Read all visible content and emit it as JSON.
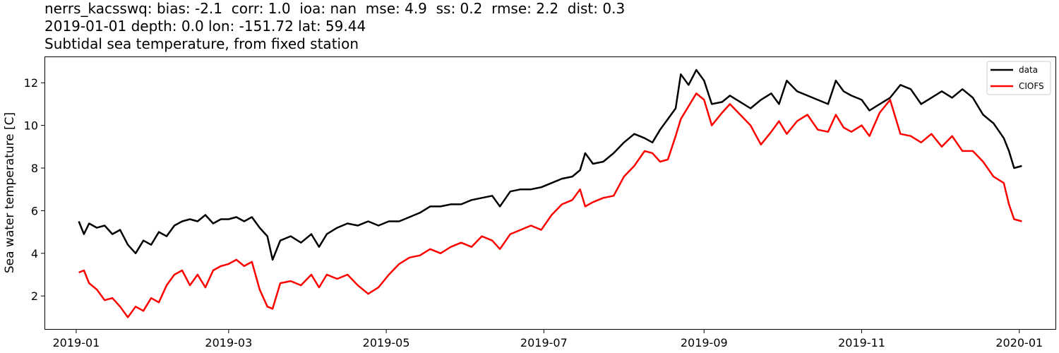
{
  "header": {
    "line1": "nerrs_kacsswq: bias: -2.1  corr: 1.0  ioa: nan  mse: 4.9  ss: 0.2  rmse: 2.2  dist: 0.3",
    "line2": "2019-01-01 depth: 0.0 lon: -151.72 lat: 59.44",
    "line3": "Subtidal sea temperature, from fixed station"
  },
  "chart_data": {
    "type": "line",
    "xlabel": "",
    "ylabel": "Sea water temperature [C]",
    "xlim": [
      "2018-12-20",
      "2020-01-15"
    ],
    "ylim": [
      0.45,
      13.2
    ],
    "x_ticks": [
      "2019-01",
      "2019-03",
      "2019-05",
      "2019-07",
      "2019-09",
      "2019-11",
      "2020-01"
    ],
    "y_ticks": [
      2,
      4,
      6,
      8,
      10,
      12
    ],
    "grid": false,
    "legend": {
      "position": "top-right"
    },
    "series": [
      {
        "name": "data",
        "color": "#000000",
        "points": [
          [
            "2019-01-02",
            5.5
          ],
          [
            "2019-01-04",
            4.9
          ],
          [
            "2019-01-06",
            5.4
          ],
          [
            "2019-01-09",
            5.2
          ],
          [
            "2019-01-12",
            5.3
          ],
          [
            "2019-01-15",
            4.9
          ],
          [
            "2019-01-18",
            5.1
          ],
          [
            "2019-01-21",
            4.4
          ],
          [
            "2019-01-24",
            4.0
          ],
          [
            "2019-01-27",
            4.6
          ],
          [
            "2019-01-30",
            4.4
          ],
          [
            "2019-02-02",
            5.0
          ],
          [
            "2019-02-05",
            4.8
          ],
          [
            "2019-02-08",
            5.3
          ],
          [
            "2019-02-11",
            5.5
          ],
          [
            "2019-02-14",
            5.6
          ],
          [
            "2019-02-17",
            5.5
          ],
          [
            "2019-02-20",
            5.8
          ],
          [
            "2019-02-23",
            5.4
          ],
          [
            "2019-02-26",
            5.6
          ],
          [
            "2019-03-01",
            5.6
          ],
          [
            "2019-03-04",
            5.7
          ],
          [
            "2019-03-07",
            5.5
          ],
          [
            "2019-03-10",
            5.7
          ],
          [
            "2019-03-13",
            5.2
          ],
          [
            "2019-03-16",
            4.8
          ],
          [
            "2019-03-18",
            3.7
          ],
          [
            "2019-03-21",
            4.6
          ],
          [
            "2019-03-25",
            4.8
          ],
          [
            "2019-03-29",
            4.5
          ],
          [
            "2019-04-02",
            4.9
          ],
          [
            "2019-04-05",
            4.3
          ],
          [
            "2019-04-08",
            4.9
          ],
          [
            "2019-04-12",
            5.2
          ],
          [
            "2019-04-16",
            5.4
          ],
          [
            "2019-04-20",
            5.3
          ],
          [
            "2019-04-24",
            5.5
          ],
          [
            "2019-04-28",
            5.3
          ],
          [
            "2019-05-02",
            5.5
          ],
          [
            "2019-05-06",
            5.5
          ],
          [
            "2019-05-10",
            5.7
          ],
          [
            "2019-05-14",
            5.9
          ],
          [
            "2019-05-18",
            6.2
          ],
          [
            "2019-05-22",
            6.2
          ],
          [
            "2019-05-26",
            6.3
          ],
          [
            "2019-05-30",
            6.3
          ],
          [
            "2019-06-03",
            6.5
          ],
          [
            "2019-06-07",
            6.6
          ],
          [
            "2019-06-11",
            6.7
          ],
          [
            "2019-06-14",
            6.2
          ],
          [
            "2019-06-18",
            6.9
          ],
          [
            "2019-06-22",
            7.0
          ],
          [
            "2019-06-26",
            7.0
          ],
          [
            "2019-06-30",
            7.1
          ],
          [
            "2019-07-04",
            7.3
          ],
          [
            "2019-07-08",
            7.5
          ],
          [
            "2019-07-12",
            7.6
          ],
          [
            "2019-07-15",
            7.9
          ],
          [
            "2019-07-17",
            8.7
          ],
          [
            "2019-07-20",
            8.2
          ],
          [
            "2019-07-24",
            8.3
          ],
          [
            "2019-07-28",
            8.7
          ],
          [
            "2019-08-01",
            9.2
          ],
          [
            "2019-08-05",
            9.6
          ],
          [
            "2019-08-09",
            9.4
          ],
          [
            "2019-08-12",
            9.2
          ],
          [
            "2019-08-15",
            9.8
          ],
          [
            "2019-08-18",
            10.3
          ],
          [
            "2019-08-21",
            10.8
          ],
          [
            "2019-08-23",
            12.4
          ],
          [
            "2019-08-26",
            11.9
          ],
          [
            "2019-08-29",
            12.6
          ],
          [
            "2019-09-01",
            12.1
          ],
          [
            "2019-09-04",
            11.0
          ],
          [
            "2019-09-08",
            11.1
          ],
          [
            "2019-09-11",
            11.4
          ],
          [
            "2019-09-15",
            11.1
          ],
          [
            "2019-09-19",
            10.8
          ],
          [
            "2019-09-23",
            11.2
          ],
          [
            "2019-09-27",
            11.5
          ],
          [
            "2019-09-30",
            11.0
          ],
          [
            "2019-10-03",
            12.1
          ],
          [
            "2019-10-07",
            11.6
          ],
          [
            "2019-10-11",
            11.4
          ],
          [
            "2019-10-15",
            11.2
          ],
          [
            "2019-10-19",
            11.0
          ],
          [
            "2019-10-22",
            12.1
          ],
          [
            "2019-10-25",
            11.6
          ],
          [
            "2019-10-28",
            11.4
          ],
          [
            "2019-11-01",
            11.2
          ],
          [
            "2019-11-04",
            10.7
          ],
          [
            "2019-11-08",
            11.0
          ],
          [
            "2019-11-12",
            11.3
          ],
          [
            "2019-11-16",
            11.9
          ],
          [
            "2019-11-20",
            11.7
          ],
          [
            "2019-11-24",
            11.0
          ],
          [
            "2019-11-28",
            11.3
          ],
          [
            "2019-12-02",
            11.6
          ],
          [
            "2019-12-06",
            11.3
          ],
          [
            "2019-12-10",
            11.7
          ],
          [
            "2019-12-14",
            11.3
          ],
          [
            "2019-12-18",
            10.5
          ],
          [
            "2019-12-22",
            10.1
          ],
          [
            "2019-12-26",
            9.4
          ],
          [
            "2019-12-28",
            8.8
          ],
          [
            "2019-12-30",
            8.0
          ],
          [
            "2020-01-02",
            8.1
          ]
        ]
      },
      {
        "name": "CIOFS",
        "color": "#ff0000",
        "points": [
          [
            "2019-01-02",
            3.1
          ],
          [
            "2019-01-04",
            3.2
          ],
          [
            "2019-01-06",
            2.6
          ],
          [
            "2019-01-09",
            2.3
          ],
          [
            "2019-01-12",
            1.8
          ],
          [
            "2019-01-15",
            1.9
          ],
          [
            "2019-01-18",
            1.5
          ],
          [
            "2019-01-21",
            1.0
          ],
          [
            "2019-01-24",
            1.5
          ],
          [
            "2019-01-27",
            1.3
          ],
          [
            "2019-01-30",
            1.9
          ],
          [
            "2019-02-02",
            1.7
          ],
          [
            "2019-02-05",
            2.5
          ],
          [
            "2019-02-08",
            3.0
          ],
          [
            "2019-02-11",
            3.2
          ],
          [
            "2019-02-14",
            2.5
          ],
          [
            "2019-02-17",
            3.0
          ],
          [
            "2019-02-20",
            2.4
          ],
          [
            "2019-02-23",
            3.2
          ],
          [
            "2019-02-26",
            3.4
          ],
          [
            "2019-03-01",
            3.5
          ],
          [
            "2019-03-04",
            3.7
          ],
          [
            "2019-03-07",
            3.4
          ],
          [
            "2019-03-10",
            3.6
          ],
          [
            "2019-03-13",
            2.3
          ],
          [
            "2019-03-16",
            1.5
          ],
          [
            "2019-03-18",
            1.4
          ],
          [
            "2019-03-21",
            2.6
          ],
          [
            "2019-03-25",
            2.7
          ],
          [
            "2019-03-29",
            2.5
          ],
          [
            "2019-04-02",
            3.0
          ],
          [
            "2019-04-05",
            2.4
          ],
          [
            "2019-04-08",
            3.0
          ],
          [
            "2019-04-12",
            2.8
          ],
          [
            "2019-04-16",
            3.0
          ],
          [
            "2019-04-20",
            2.5
          ],
          [
            "2019-04-24",
            2.1
          ],
          [
            "2019-04-28",
            2.4
          ],
          [
            "2019-05-02",
            3.0
          ],
          [
            "2019-05-06",
            3.5
          ],
          [
            "2019-05-10",
            3.8
          ],
          [
            "2019-05-14",
            3.9
          ],
          [
            "2019-05-18",
            4.2
          ],
          [
            "2019-05-22",
            4.0
          ],
          [
            "2019-05-26",
            4.3
          ],
          [
            "2019-05-30",
            4.5
          ],
          [
            "2019-06-03",
            4.3
          ],
          [
            "2019-06-07",
            4.8
          ],
          [
            "2019-06-11",
            4.6
          ],
          [
            "2019-06-14",
            4.2
          ],
          [
            "2019-06-18",
            4.9
          ],
          [
            "2019-06-22",
            5.1
          ],
          [
            "2019-06-26",
            5.3
          ],
          [
            "2019-06-30",
            5.1
          ],
          [
            "2019-07-04",
            5.8
          ],
          [
            "2019-07-08",
            6.3
          ],
          [
            "2019-07-12",
            6.5
          ],
          [
            "2019-07-15",
            7.0
          ],
          [
            "2019-07-17",
            6.2
          ],
          [
            "2019-07-20",
            6.4
          ],
          [
            "2019-07-24",
            6.6
          ],
          [
            "2019-07-28",
            6.7
          ],
          [
            "2019-08-01",
            7.6
          ],
          [
            "2019-08-05",
            8.1
          ],
          [
            "2019-08-09",
            8.8
          ],
          [
            "2019-08-12",
            8.7
          ],
          [
            "2019-08-15",
            8.3
          ],
          [
            "2019-08-18",
            8.4
          ],
          [
            "2019-08-21",
            9.5
          ],
          [
            "2019-08-23",
            10.3
          ],
          [
            "2019-08-26",
            10.9
          ],
          [
            "2019-08-29",
            11.5
          ],
          [
            "2019-09-01",
            11.2
          ],
          [
            "2019-09-04",
            10.0
          ],
          [
            "2019-09-08",
            10.6
          ],
          [
            "2019-09-11",
            11.0
          ],
          [
            "2019-09-15",
            10.5
          ],
          [
            "2019-09-19",
            10.0
          ],
          [
            "2019-09-23",
            9.1
          ],
          [
            "2019-09-27",
            9.7
          ],
          [
            "2019-09-30",
            10.2
          ],
          [
            "2019-10-03",
            9.6
          ],
          [
            "2019-10-07",
            10.2
          ],
          [
            "2019-10-11",
            10.5
          ],
          [
            "2019-10-15",
            9.8
          ],
          [
            "2019-10-19",
            9.7
          ],
          [
            "2019-10-22",
            10.5
          ],
          [
            "2019-10-25",
            9.9
          ],
          [
            "2019-10-28",
            9.7
          ],
          [
            "2019-11-01",
            10.0
          ],
          [
            "2019-11-04",
            9.5
          ],
          [
            "2019-11-08",
            10.6
          ],
          [
            "2019-11-12",
            11.2
          ],
          [
            "2019-11-16",
            9.6
          ],
          [
            "2019-11-20",
            9.5
          ],
          [
            "2019-11-24",
            9.2
          ],
          [
            "2019-11-28",
            9.6
          ],
          [
            "2019-12-02",
            9.0
          ],
          [
            "2019-12-06",
            9.5
          ],
          [
            "2019-12-10",
            8.8
          ],
          [
            "2019-12-14",
            8.8
          ],
          [
            "2019-12-18",
            8.3
          ],
          [
            "2019-12-22",
            7.6
          ],
          [
            "2019-12-26",
            7.3
          ],
          [
            "2019-12-28",
            6.3
          ],
          [
            "2019-12-30",
            5.6
          ],
          [
            "2020-01-02",
            5.5
          ]
        ]
      }
    ]
  }
}
